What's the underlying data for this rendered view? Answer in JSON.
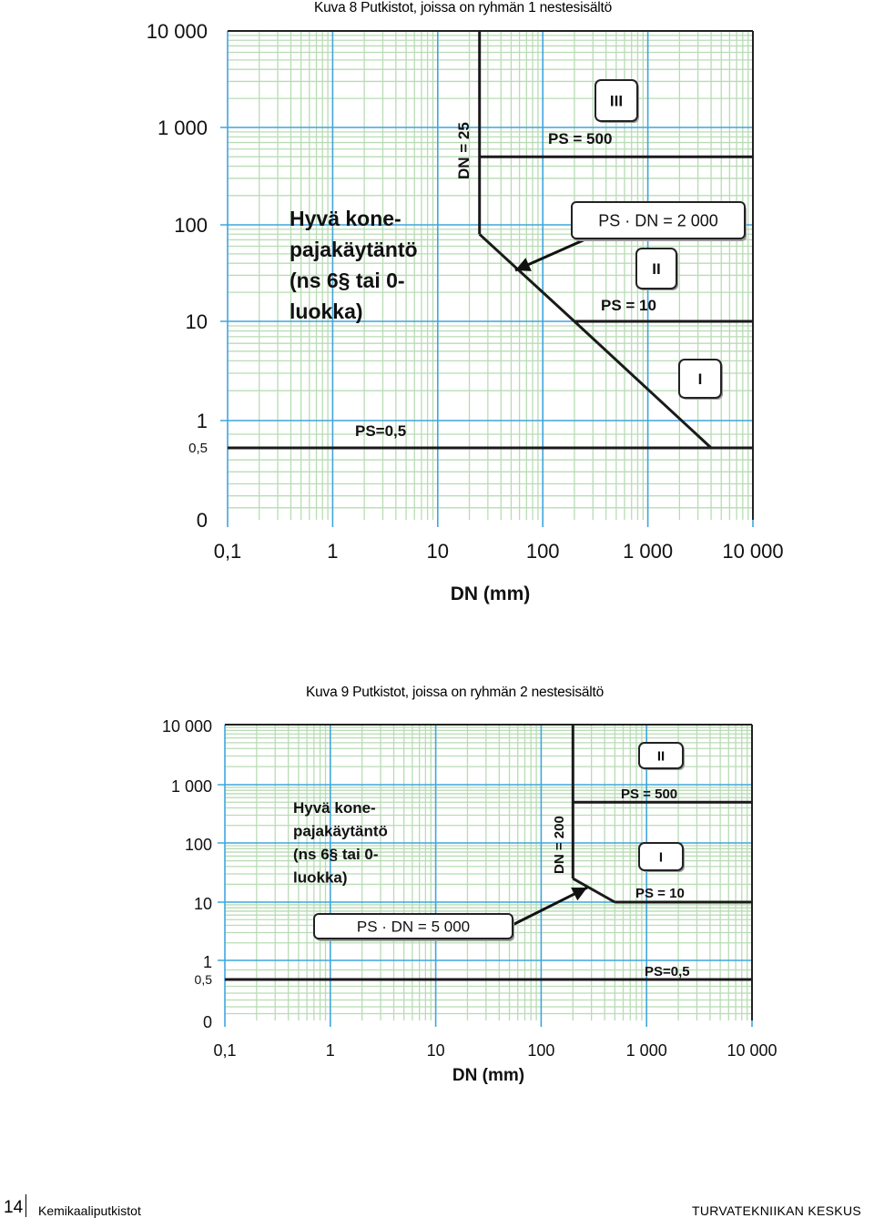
{
  "figures": [
    {
      "caption": "Kuva 8  Putkistot, joissa on ryhmän 1 nestesisältö"
    },
    {
      "caption": "Kuva 9  Putkistot, joissa on ryhmän 2 nestesisältö"
    }
  ],
  "footer": {
    "page_number": "14",
    "left_text": "Kemikaaliputkistot",
    "right_text": "TURVATEKNIIKAN KESKUS"
  },
  "chart_data": [
    {
      "type": "line",
      "title": "",
      "xlabel": "DN (mm)",
      "ylabel": "",
      "x_scale": "log",
      "y_scale": "log",
      "xlim": [
        0.1,
        10000
      ],
      "x_ticks": [
        0.1,
        1,
        10,
        100,
        1000,
        10000
      ],
      "x_tick_labels": [
        "0,1",
        "1",
        "10",
        "100",
        "1 000",
        "10 000"
      ],
      "y_ticks": [
        0,
        0.5,
        1,
        10,
        100,
        1000,
        10000
      ],
      "y_tick_labels": [
        "0",
        "0,5",
        "1",
        "10",
        "100",
        "1 000",
        "10 000"
      ],
      "grid": true,
      "boundaries": [
        {
          "label": "PS=0,5",
          "points": [
            [
              0.1,
              0.5
            ],
            [
              10000,
              0.5
            ]
          ]
        },
        {
          "label": "DN = 25",
          "points": [
            [
              25,
              10000
            ],
            [
              25,
              80
            ]
          ]
        },
        {
          "label": "PS · DN = 2 000",
          "points": [
            [
              25,
              80
            ],
            [
              200,
              10
            ],
            [
              4000,
              0.5
            ]
          ]
        },
        {
          "label": "PS = 10",
          "points": [
            [
              200,
              10
            ],
            [
              10000,
              10
            ]
          ]
        },
        {
          "label": "PS = 500",
          "points": [
            [
              25,
              500
            ],
            [
              10000,
              500
            ]
          ]
        }
      ],
      "category_labels": [
        "III",
        "II",
        "I"
      ],
      "annotation": "Hyvä kone-\npajakäytäntö\n(ns 6§ tai 0-\nluokka)"
    },
    {
      "type": "line",
      "title": "",
      "xlabel": "DN (mm)",
      "ylabel": "",
      "x_scale": "log",
      "y_scale": "log",
      "xlim": [
        0.1,
        10000
      ],
      "x_ticks": [
        0.1,
        1,
        10,
        100,
        1000,
        10000
      ],
      "x_tick_labels": [
        "0,1",
        "1",
        "10",
        "100",
        "1 000",
        "10 000"
      ],
      "y_ticks": [
        0,
        0.5,
        1,
        10,
        100,
        1000,
        10000
      ],
      "y_tick_labels": [
        "0",
        "0,5",
        "1",
        "10",
        "100",
        "1 000",
        "10 000"
      ],
      "grid": true,
      "boundaries": [
        {
          "label": "PS=0,5",
          "points": [
            [
              0.1,
              0.5
            ],
            [
              10000,
              0.5
            ]
          ]
        },
        {
          "label": "DN = 200",
          "points": [
            [
              200,
              10000
            ],
            [
              200,
              25
            ]
          ]
        },
        {
          "label": "PS · DN = 5 000",
          "points": [
            [
              200,
              25
            ],
            [
              500,
              10
            ]
          ]
        },
        {
          "label": "PS = 10",
          "points": [
            [
              500,
              10
            ],
            [
              10000,
              10
            ]
          ]
        },
        {
          "label": "PS = 500",
          "points": [
            [
              200,
              500
            ],
            [
              10000,
              500
            ]
          ]
        }
      ],
      "category_labels": [
        "II",
        "I"
      ],
      "annotation": "Hyvä kone-\npajakäytäntö\n(ns 6§ tai 0-\nluokka)"
    }
  ]
}
